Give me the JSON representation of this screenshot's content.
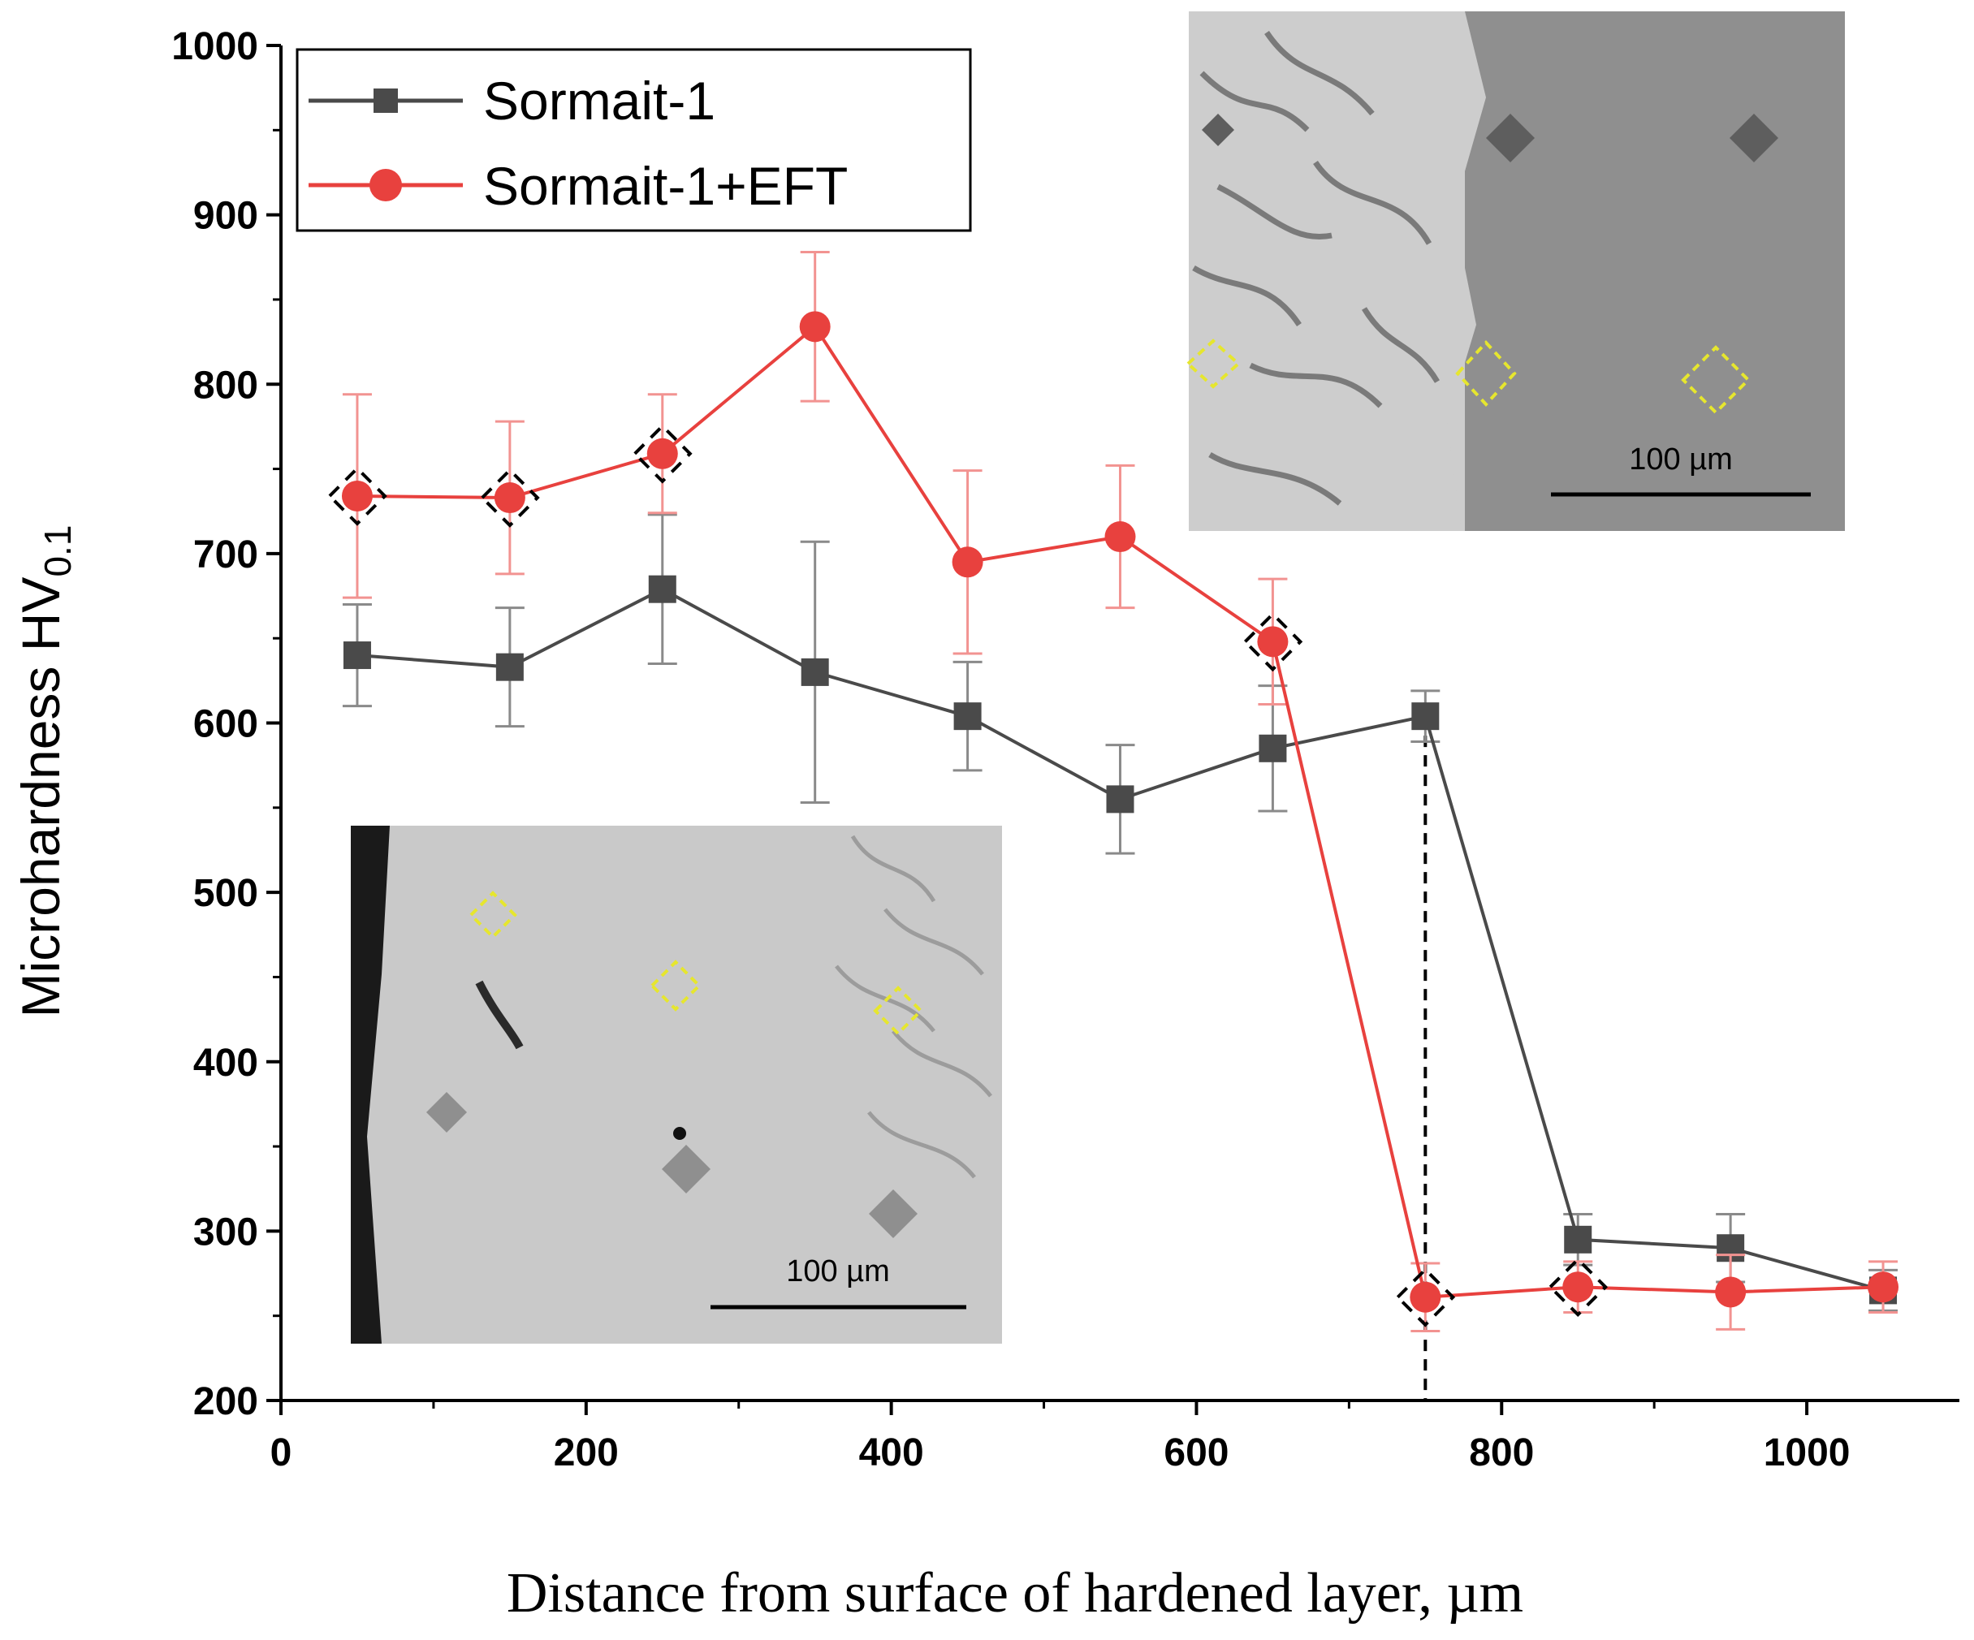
{
  "chart_data": {
    "type": "line",
    "title": "",
    "xlabel": "Distance from surface of hardened layer, µm",
    "ylabel": "Microhardness HV",
    "ylabel_subscript": "0.1",
    "xlim": [
      0,
      1100
    ],
    "ylim": [
      200,
      1000
    ],
    "xticks": [
      0,
      200,
      400,
      600,
      800,
      1000
    ],
    "yticks": [
      200,
      300,
      400,
      500,
      600,
      700,
      800,
      900,
      1000
    ],
    "grid": false,
    "legend_position": "top-left",
    "series": [
      {
        "name": "Sormait-1",
        "color": "#4a4a4a",
        "marker": "square",
        "x": [
          50,
          150,
          250,
          350,
          450,
          550,
          650,
          750,
          850,
          950,
          1050
        ],
        "y": [
          640,
          633,
          679,
          630,
          604,
          555,
          585,
          604,
          295,
          290,
          265
        ],
        "error": [
          30,
          35,
          44,
          77,
          32,
          32,
          37,
          15,
          15,
          20,
          12
        ]
      },
      {
        "name": "Sormait-1+EFT",
        "color": "#e8413e",
        "marker": "circle",
        "x": [
          50,
          150,
          250,
          350,
          450,
          550,
          650,
          750,
          850,
          950,
          1050
        ],
        "y": [
          734,
          733,
          759,
          834,
          695,
          710,
          648,
          261,
          267,
          264,
          267
        ],
        "error": [
          60,
          45,
          35,
          44,
          54,
          42,
          37,
          20,
          15,
          22,
          15
        ]
      }
    ],
    "reference_line_x": 750,
    "highlighted_points_x": [
      50,
      150,
      250,
      650,
      750,
      850
    ],
    "insets": [
      {
        "position": "top-right",
        "scale_bar_label": "100 µm"
      },
      {
        "position": "bottom-left",
        "scale_bar_label": "100 µm"
      }
    ]
  }
}
